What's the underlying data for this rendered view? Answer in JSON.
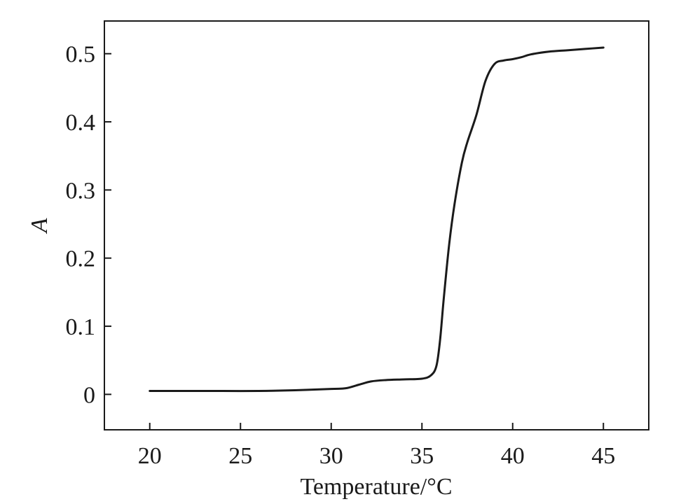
{
  "chart_data": {
    "type": "line",
    "xlabel": "Temperature/°C",
    "ylabel": "A",
    "xlim": [
      17.5,
      47.5
    ],
    "ylim": [
      -0.052,
      0.548
    ],
    "x_ticks": [
      20,
      25,
      30,
      35,
      40,
      45
    ],
    "x_tick_labels": [
      "20",
      "25",
      "30",
      "35",
      "40",
      "45"
    ],
    "y_ticks": [
      0,
      0.1,
      0.2,
      0.3,
      0.4,
      0.5
    ],
    "y_tick_labels": [
      "0",
      "0.1",
      "0.2",
      "0.3",
      "0.4",
      "0.5"
    ],
    "grid": false,
    "legend": "none",
    "line_color": "#1a1a1a",
    "series": [
      {
        "x": [
          20,
          22,
          24,
          26,
          28,
          30,
          30.8,
          31.5,
          32.2,
          33,
          34,
          35,
          35.5,
          35.8,
          36,
          36.2,
          36.5,
          36.8,
          37.2,
          37.5,
          38,
          38.5,
          39,
          39.5,
          40,
          40.5,
          41,
          42,
          43,
          44,
          45
        ],
        "y": [
          0.005,
          0.005,
          0.005,
          0.005,
          0.006,
          0.008,
          0.009,
          0.014,
          0.019,
          0.021,
          0.022,
          0.023,
          0.028,
          0.042,
          0.08,
          0.14,
          0.22,
          0.28,
          0.34,
          0.37,
          0.41,
          0.46,
          0.485,
          0.49,
          0.492,
          0.495,
          0.499,
          0.503,
          0.505,
          0.507,
          0.509
        ]
      }
    ]
  }
}
